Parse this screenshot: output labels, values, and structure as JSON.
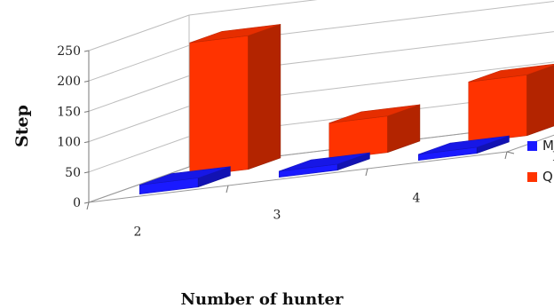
{
  "chart_data": {
    "type": "bar",
    "title": "",
    "xlabel": "Number of hunter",
    "ylabel": "Step",
    "categories": [
      "2",
      "3",
      "4"
    ],
    "depth_labels": [
      "M",
      "Q"
    ],
    "series": [
      {
        "name": "M",
        "values": [
          15,
          10,
          10
        ],
        "color": "#1a1aff"
      },
      {
        "name": "Q",
        "values": [
          220,
          60,
          100
        ],
        "color": "#ff3300"
      }
    ],
    "ylim": [
      0,
      250
    ],
    "yticks": [
      0,
      50,
      100,
      150,
      200,
      250
    ],
    "ytick_labels": [
      "0",
      "50",
      "100",
      "150",
      "200",
      "250"
    ],
    "grid": true,
    "legend_position": "right"
  }
}
